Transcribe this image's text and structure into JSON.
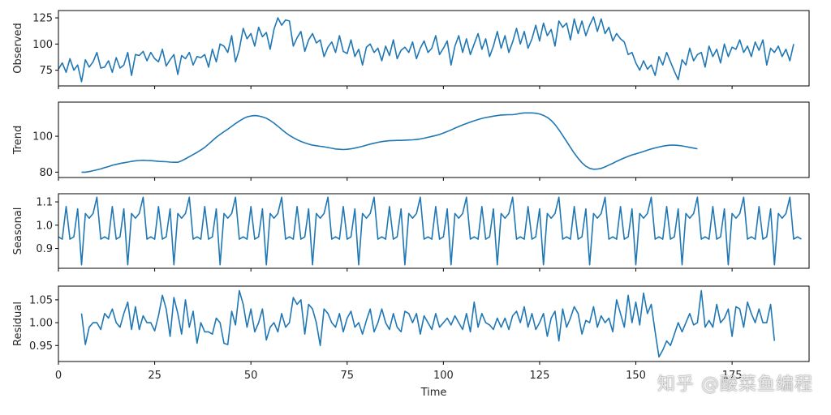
{
  "chart_data": {
    "type": "line",
    "xlabel": "Time",
    "x_ticks": [
      0,
      25,
      50,
      75,
      100,
      125,
      150,
      175
    ],
    "xlim": [
      0,
      195
    ],
    "line_color": "#1f77b4",
    "panels": [
      {
        "ylabel": "Observed",
        "ylim": [
          60,
          132
        ],
        "y_ticks": [
          75,
          100,
          125
        ],
        "y_tick_labels": [
          "75",
          "100",
          "125"
        ],
        "x_start": 0,
        "values": [
          76,
          82,
          73,
          86,
          75,
          80,
          64,
          85,
          78,
          83,
          92,
          77,
          78,
          84,
          73,
          87,
          77,
          80,
          92,
          70,
          90,
          89,
          93,
          84,
          92,
          86,
          83,
          95,
          79,
          85,
          90,
          71,
          89,
          86,
          92,
          80,
          88,
          87,
          90,
          78,
          95,
          83,
          100,
          98,
          92,
          108,
          83,
          95,
          115,
          105,
          110,
          98,
          116,
          107,
          111,
          95,
          114,
          125,
          118,
          123,
          122,
          98,
          106,
          112,
          93,
          104,
          110,
          101,
          104,
          88,
          97,
          102,
          92,
          108,
          93,
          91,
          104,
          88,
          95,
          80,
          97,
          100,
          92,
          96,
          84,
          98,
          89,
          104,
          86,
          94,
          97,
          92,
          102,
          86,
          96,
          103,
          92,
          96,
          108,
          90,
          96,
          103,
          80,
          98,
          108,
          92,
          105,
          90,
          100,
          110,
          95,
          105,
          88,
          98,
          112,
          96,
          108,
          92,
          102,
          115,
          100,
          112,
          96,
          105,
          118,
          103,
          120,
          108,
          114,
          98,
          122,
          116,
          120,
          104,
          124,
          110,
          122,
          108,
          118,
          126,
          112,
          124,
          110,
          116,
          103,
          110,
          105,
          102,
          90,
          92,
          82,
          75,
          84,
          76,
          80,
          70,
          88,
          80,
          92,
          83,
          74,
          66,
          85,
          80,
          96,
          84,
          90,
          92,
          78,
          98,
          88,
          95,
          82,
          100,
          88,
          97,
          95,
          104,
          92,
          98,
          88,
          102,
          94,
          104,
          80,
          96,
          92,
          98,
          88,
          95,
          84,
          100
        ],
        "label": "observed-line"
      },
      {
        "ylabel": "Trend",
        "ylim": [
          77,
          119
        ],
        "y_ticks": [
          80,
          100
        ],
        "y_tick_labels": [
          "80",
          "100"
        ],
        "x_start": 6,
        "values": [
          80,
          80,
          80.3,
          80.8,
          81.3,
          81.8,
          82.5,
          83.1,
          83.8,
          84.3,
          84.8,
          85.2,
          85.6,
          86,
          86.3,
          86.5,
          86.6,
          86.5,
          86.4,
          86.2,
          86,
          85.9,
          85.8,
          85.6,
          85.5,
          85.5,
          86.3,
          87.4,
          88.6,
          89.8,
          91,
          92.3,
          93.8,
          95.6,
          97.5,
          99.4,
          101,
          102.5,
          103.9,
          105.5,
          107.1,
          108.5,
          109.8,
          110.8,
          111.3,
          111.5,
          111.3,
          110.8,
          110,
          108.8,
          107.3,
          105.6,
          103.8,
          102,
          100.5,
          99.2,
          98.1,
          97.1,
          96.3,
          95.6,
          95,
          94.7,
          94.4,
          94.1,
          93.7,
          93.3,
          92.9,
          92.7,
          92.6,
          92.7,
          93,
          93.4,
          93.9,
          94.4,
          95,
          95.6,
          96.1,
          96.6,
          97,
          97.3,
          97.5,
          97.6,
          97.7,
          97.7,
          97.8,
          97.9,
          98,
          98.2,
          98.5,
          98.9,
          99.4,
          99.9,
          100.4,
          101,
          101.8,
          102.6,
          103.5,
          104.5,
          105.4,
          106.3,
          107.1,
          107.9,
          108.6,
          109.3,
          109.9,
          110.4,
          110.8,
          111.2,
          111.5,
          111.8,
          111.9,
          112,
          112,
          112.3,
          112.7,
          113,
          113,
          113,
          112.8,
          112.4,
          111.6,
          110.5,
          108.8,
          106.5,
          103.6,
          100.4,
          97.1,
          93.8,
          90.6,
          87.7,
          85.2,
          83.3,
          82.1,
          81.6,
          81.7,
          82.1,
          82.9,
          83.9,
          84.9,
          86,
          87,
          87.9,
          88.8,
          89.6,
          90.2,
          90.8,
          91.5,
          92.2,
          92.9,
          93.5,
          94,
          94.5,
          94.8,
          95,
          95,
          94.9,
          94.6,
          94.2,
          93.8,
          93.4,
          93
        ]
      },
      {
        "ylabel": "Seasonal",
        "ylim": [
          0.815,
          1.135
        ],
        "y_ticks": [
          0.9,
          1.0,
          1.1
        ],
        "y_tick_labels": [
          "0.9",
          "1.0",
          "1.1"
        ],
        "x_start": 0,
        "season_pattern": [
          0.95,
          0.94,
          1.08,
          0.94,
          0.95,
          1.07,
          0.83,
          1.05,
          1.03,
          1.05,
          1.12,
          0.94
        ],
        "label": "seasonal-line"
      },
      {
        "ylabel": "Residual",
        "ylim": [
          0.915,
          1.08
        ],
        "y_ticks": [
          0.95,
          1.0,
          1.05
        ],
        "y_tick_labels": [
          "0.95",
          "1.00",
          "1.05"
        ],
        "x_start": 6,
        "values": [
          1.02,
          0.952,
          0.99,
          1.0,
          1.0,
          0.985,
          1.02,
          1.01,
          1.03,
          1.0,
          0.99,
          1.02,
          1.045,
          0.985,
          1.035,
          0.985,
          1.015,
          1.0,
          1.0,
          0.982,
          1.015,
          1.06,
          1.03,
          0.97,
          1.055,
          1.02,
          0.975,
          1.05,
          0.99,
          1.025,
          0.955,
          1.0,
          0.98,
          0.98,
          0.975,
          1.01,
          1.0,
          0.955,
          0.952,
          1.025,
          0.995,
          1.07,
          1.04,
          0.99,
          1.03,
          0.98,
          1.0,
          1.03,
          0.962,
          0.99,
          1.0,
          0.98,
          1.02,
          0.99,
          1.0,
          1.055,
          1.04,
          1.05,
          0.975,
          1.04,
          1.03,
          1.0,
          0.95,
          1.03,
          1.02,
          1.0,
          0.99,
          1.02,
          0.98,
          1.01,
          1.025,
          0.99,
          1.0,
          0.975,
          1.005,
          1.03,
          0.98,
          1.0,
          1.03,
          1.0,
          0.985,
          1.02,
          0.99,
          0.98,
          1.025,
          1.02,
          1.0,
          1.02,
          0.975,
          1.015,
          1.0,
          0.985,
          1.02,
          0.99,
          1.0,
          1.01,
          0.995,
          1.015,
          1.0,
          0.985,
          1.02,
          0.98,
          1.045,
          0.99,
          1.02,
          1.0,
          0.995,
          0.985,
          1.01,
          0.99,
          1.01,
          0.985,
          1.015,
          1.025,
          1.0,
          1.035,
          0.99,
          1.02,
          0.985,
          1.0,
          1.02,
          0.97,
          1.01,
          1.025,
          0.96,
          1.03,
          0.99,
          1.01,
          1.035,
          1.02,
          0.975,
          1.005,
          1.0,
          1.035,
          0.99,
          1.015,
          1.0,
          1.01,
          0.98,
          1.05,
          1.02,
          0.99,
          1.06,
          1.0,
          1.045,
          0.995,
          1.065,
          1.02,
          1.04,
          0.98,
          0.925,
          0.94,
          0.96,
          0.95,
          0.975,
          1.0,
          0.98,
          1.0,
          1.02,
          0.995,
          1.0,
          1.07,
          0.99,
          1.005,
          0.99,
          1.04,
          1.0,
          1.01,
          1.03,
          0.97,
          1.035,
          1.03,
          0.99,
          1.045,
          1.02,
          1.0,
          1.03,
          1.0,
          1.0,
          1.04,
          0.96
        ]
      }
    ]
  },
  "watermark": "知乎 @酸菜鱼编程"
}
